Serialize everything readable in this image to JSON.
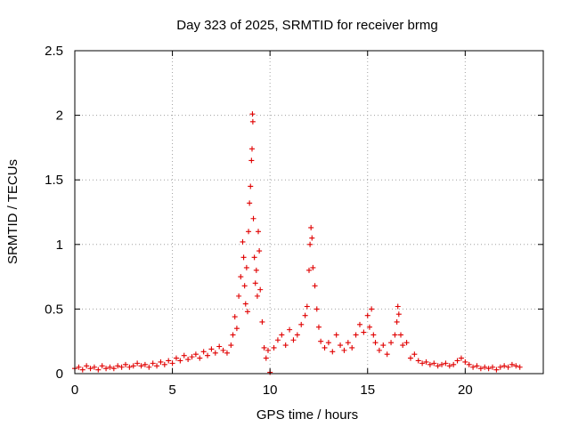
{
  "chart_data": {
    "type": "scatter",
    "title": "Day 323 of 2025, SRMTID for receiver brmg",
    "xlabel": "GPS time / hours",
    "ylabel": "SRMTID / TECUs",
    "xlim": [
      0,
      24
    ],
    "ylim": [
      0,
      2.5
    ],
    "x_ticks": [
      0,
      5,
      10,
      15,
      20
    ],
    "y_ticks": [
      0,
      0.5,
      1,
      1.5,
      2,
      2.5
    ],
    "x_tick_labels": [
      "0",
      "5",
      "10",
      "15",
      "20"
    ],
    "y_tick_labels": [
      "0",
      "0.5",
      "1",
      "1.5",
      "2",
      "2.5"
    ],
    "grid": true,
    "marker": "plus",
    "series": [
      {
        "name": "brmg",
        "color": "#e00000",
        "points": [
          [
            0.0,
            0.04
          ],
          [
            0.2,
            0.05
          ],
          [
            0.4,
            0.03
          ],
          [
            0.6,
            0.06
          ],
          [
            0.8,
            0.04
          ],
          [
            1.0,
            0.05
          ],
          [
            1.2,
            0.03
          ],
          [
            1.4,
            0.06
          ],
          [
            1.6,
            0.04
          ],
          [
            1.8,
            0.05
          ],
          [
            2.0,
            0.04
          ],
          [
            2.2,
            0.06
          ],
          [
            2.4,
            0.05
          ],
          [
            2.6,
            0.07
          ],
          [
            2.8,
            0.05
          ],
          [
            3.0,
            0.06
          ],
          [
            3.2,
            0.08
          ],
          [
            3.4,
            0.06
          ],
          [
            3.6,
            0.07
          ],
          [
            3.8,
            0.05
          ],
          [
            4.0,
            0.08
          ],
          [
            4.2,
            0.06
          ],
          [
            4.4,
            0.09
          ],
          [
            4.6,
            0.07
          ],
          [
            4.8,
            0.1
          ],
          [
            5.0,
            0.08
          ],
          [
            5.2,
            0.12
          ],
          [
            5.4,
            0.1
          ],
          [
            5.6,
            0.14
          ],
          [
            5.8,
            0.11
          ],
          [
            6.0,
            0.13
          ],
          [
            6.2,
            0.15
          ],
          [
            6.4,
            0.12
          ],
          [
            6.6,
            0.17
          ],
          [
            6.8,
            0.14
          ],
          [
            7.0,
            0.19
          ],
          [
            7.2,
            0.16
          ],
          [
            7.4,
            0.21
          ],
          [
            7.6,
            0.18
          ],
          [
            7.8,
            0.16
          ],
          [
            8.0,
            0.22
          ],
          [
            8.1,
            0.3
          ],
          [
            8.2,
            0.44
          ],
          [
            8.3,
            0.35
          ],
          [
            8.4,
            0.6
          ],
          [
            8.5,
            0.75
          ],
          [
            8.6,
            1.02
          ],
          [
            8.65,
            0.9
          ],
          [
            8.7,
            0.68
          ],
          [
            8.75,
            0.54
          ],
          [
            8.8,
            0.82
          ],
          [
            8.85,
            0.48
          ],
          [
            8.9,
            1.1
          ],
          [
            8.95,
            1.32
          ],
          [
            9.0,
            1.45
          ],
          [
            9.05,
            1.65
          ],
          [
            9.08,
            1.74
          ],
          [
            9.1,
            2.01
          ],
          [
            9.12,
            1.95
          ],
          [
            9.15,
            1.2
          ],
          [
            9.2,
            0.9
          ],
          [
            9.25,
            0.7
          ],
          [
            9.3,
            0.8
          ],
          [
            9.35,
            0.6
          ],
          [
            9.4,
            1.1
          ],
          [
            9.45,
            0.95
          ],
          [
            9.5,
            0.65
          ],
          [
            9.6,
            0.4
          ],
          [
            9.7,
            0.2
          ],
          [
            9.8,
            0.12
          ],
          [
            9.9,
            0.18
          ],
          [
            10.0,
            0.01
          ],
          [
            10.2,
            0.2
          ],
          [
            10.4,
            0.26
          ],
          [
            10.6,
            0.3
          ],
          [
            10.8,
            0.22
          ],
          [
            11.0,
            0.34
          ],
          [
            11.2,
            0.26
          ],
          [
            11.4,
            0.3
          ],
          [
            11.6,
            0.38
          ],
          [
            11.8,
            0.45
          ],
          [
            11.9,
            0.52
          ],
          [
            12.0,
            0.8
          ],
          [
            12.05,
            1.0
          ],
          [
            12.1,
            1.13
          ],
          [
            12.15,
            1.05
          ],
          [
            12.2,
            0.82
          ],
          [
            12.3,
            0.68
          ],
          [
            12.4,
            0.5
          ],
          [
            12.5,
            0.36
          ],
          [
            12.6,
            0.25
          ],
          [
            12.8,
            0.2
          ],
          [
            13.0,
            0.24
          ],
          [
            13.2,
            0.17
          ],
          [
            13.4,
            0.3
          ],
          [
            13.6,
            0.22
          ],
          [
            13.8,
            0.18
          ],
          [
            14.0,
            0.24
          ],
          [
            14.2,
            0.2
          ],
          [
            14.4,
            0.3
          ],
          [
            14.6,
            0.38
          ],
          [
            14.8,
            0.32
          ],
          [
            15.0,
            0.45
          ],
          [
            15.1,
            0.36
          ],
          [
            15.2,
            0.5
          ],
          [
            15.3,
            0.3
          ],
          [
            15.4,
            0.24
          ],
          [
            15.6,
            0.18
          ],
          [
            15.8,
            0.22
          ],
          [
            16.0,
            0.15
          ],
          [
            16.2,
            0.24
          ],
          [
            16.4,
            0.3
          ],
          [
            16.5,
            0.4
          ],
          [
            16.55,
            0.52
          ],
          [
            16.6,
            0.46
          ],
          [
            16.7,
            0.3
          ],
          [
            16.8,
            0.22
          ],
          [
            17.0,
            0.24
          ],
          [
            17.2,
            0.12
          ],
          [
            17.4,
            0.15
          ],
          [
            17.6,
            0.1
          ],
          [
            17.8,
            0.08
          ],
          [
            18.0,
            0.09
          ],
          [
            18.2,
            0.07
          ],
          [
            18.4,
            0.08
          ],
          [
            18.6,
            0.06
          ],
          [
            18.8,
            0.07
          ],
          [
            19.0,
            0.08
          ],
          [
            19.2,
            0.06
          ],
          [
            19.4,
            0.07
          ],
          [
            19.6,
            0.1
          ],
          [
            19.8,
            0.12
          ],
          [
            20.0,
            0.09
          ],
          [
            20.2,
            0.07
          ],
          [
            20.4,
            0.05
          ],
          [
            20.6,
            0.06
          ],
          [
            20.8,
            0.04
          ],
          [
            21.0,
            0.05
          ],
          [
            21.2,
            0.04
          ],
          [
            21.4,
            0.05
          ],
          [
            21.6,
            0.03
          ],
          [
            21.8,
            0.05
          ],
          [
            22.0,
            0.06
          ],
          [
            22.2,
            0.05
          ],
          [
            22.4,
            0.07
          ],
          [
            22.6,
            0.06
          ],
          [
            22.8,
            0.05
          ]
        ]
      }
    ]
  }
}
